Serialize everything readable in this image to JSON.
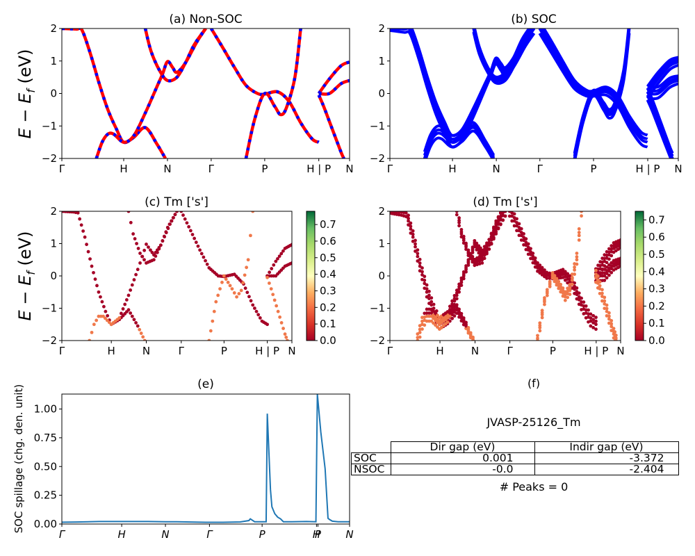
{
  "chart_data": [
    {
      "id": "a",
      "type": "line",
      "title": "(a) Non-SOC",
      "ylabel": "E − E_f (eV)",
      "xlabel": "",
      "ylim": [
        -2,
        2
      ],
      "yticks": [
        "−2",
        "−1",
        "0",
        "1",
        "2"
      ],
      "kpath": [
        {
          "label": "Γ",
          "pos": 0
        },
        {
          "label": "H",
          "pos": 0.215
        },
        {
          "label": "N",
          "pos": 0.367
        },
        {
          "label": "Γ",
          "pos": 0.519
        },
        {
          "label": "P",
          "pos": 0.705
        },
        {
          "label": "H | P",
          "pos": 0.893
        },
        {
          "label": "N",
          "pos": 1.0
        }
      ],
      "style": "red solid with blue dashes (spin up/down overlap)",
      "colors": {
        "line_a": "#ff0000",
        "line_b": "#0000ff"
      },
      "bands": [
        [
          [
            0.0,
            2.0
          ],
          [
            0.05,
            1.98
          ],
          [
            0.07,
            1.95
          ],
          [
            0.1,
            1.2
          ],
          [
            0.13,
            0.3
          ],
          [
            0.16,
            -0.5
          ],
          [
            0.19,
            -1.1
          ],
          [
            0.215,
            -1.5
          ],
          [
            0.25,
            -1.35
          ],
          [
            0.29,
            -1.05
          ],
          [
            0.33,
            -1.55
          ],
          [
            0.36,
            -2.0
          ]
        ],
        [
          [
            0.12,
            -2.0
          ],
          [
            0.14,
            -1.5
          ],
          [
            0.16,
            -1.25
          ],
          [
            0.18,
            -1.25
          ],
          [
            0.215,
            -1.5
          ],
          [
            0.25,
            -1.3
          ],
          [
            0.29,
            -0.6
          ],
          [
            0.33,
            0.2
          ],
          [
            0.35,
            0.6
          ],
          [
            0.367,
            0.98
          ],
          [
            0.385,
            0.8
          ],
          [
            0.4,
            0.65
          ],
          [
            0.43,
            0.95
          ],
          [
            0.47,
            1.6
          ],
          [
            0.5,
            2.0
          ]
        ],
        [
          [
            0.29,
            2.0
          ],
          [
            0.31,
            1.3
          ],
          [
            0.34,
            0.7
          ],
          [
            0.367,
            0.4
          ],
          [
            0.4,
            0.5
          ],
          [
            0.43,
            0.95
          ],
          [
            0.46,
            1.5
          ],
          [
            0.5,
            2.0
          ]
        ],
        [
          [
            0.519,
            2.0
          ],
          [
            0.56,
            1.4
          ],
          [
            0.6,
            0.8
          ],
          [
            0.64,
            0.25
          ],
          [
            0.68,
            0.0
          ],
          [
            0.705,
            -0.02
          ],
          [
            0.75,
            0.05
          ],
          [
            0.79,
            -0.25
          ],
          [
            0.83,
            -0.9
          ],
          [
            0.87,
            -1.4
          ],
          [
            0.893,
            -1.5
          ]
        ],
        [
          [
            0.64,
            -2.0
          ],
          [
            0.67,
            -0.8
          ],
          [
            0.705,
            0.0
          ],
          [
            0.74,
            -0.4
          ],
          [
            0.76,
            -0.65
          ],
          [
            0.78,
            -0.45
          ],
          [
            0.81,
            0.5
          ],
          [
            0.83,
            2.0
          ]
        ],
        [
          [
            0.893,
            0.0
          ],
          [
            0.93,
            0.45
          ],
          [
            0.97,
            0.85
          ],
          [
            1.0,
            0.97
          ]
        ],
        [
          [
            0.893,
            0.0
          ],
          [
            0.93,
            0.0
          ],
          [
            0.97,
            0.3
          ],
          [
            1.0,
            0.4
          ]
        ],
        [
          [
            0.893,
            -0.05
          ],
          [
            0.91,
            -0.4
          ],
          [
            0.94,
            -1.1
          ],
          [
            0.97,
            -1.8
          ],
          [
            0.98,
            -2.0
          ]
        ]
      ]
    },
    {
      "id": "b",
      "type": "line",
      "title": "(b) SOC",
      "ylim": [
        -2,
        2
      ],
      "yticks": [
        "−2",
        "−1",
        "0",
        "1",
        "2"
      ],
      "kpath": [
        {
          "label": "Γ",
          "pos": 0
        },
        {
          "label": "H",
          "pos": 0.217
        },
        {
          "label": "N",
          "pos": 0.369
        },
        {
          "label": "Γ",
          "pos": 0.52
        },
        {
          "label": "P",
          "pos": 0.706
        },
        {
          "label": "H | P",
          "pos": 0.894
        },
        {
          "label": "N",
          "pos": 1.0
        }
      ],
      "colors": {
        "line": "#0000ff"
      },
      "band_offsets": [
        -0.15,
        0.0,
        0.1,
        0.22
      ]
    },
    {
      "id": "c",
      "type": "scatter",
      "title": "(c)  Tm ['s']",
      "ylabel": "E − E_f (eV)",
      "ylim": [
        -2,
        2
      ],
      "yticks": [
        "−2",
        "−1",
        "0",
        "1",
        "2"
      ],
      "kpath_labels": [
        "Γ",
        "H",
        "N",
        "Γ",
        "P",
        "H | P",
        "N"
      ],
      "colorbar": {
        "cmap": "RdYlGn",
        "range": [
          0.0,
          0.78
        ],
        "ticks": [
          "0.0",
          "0.1",
          "0.2",
          "0.3",
          "0.4",
          "0.5",
          "0.6",
          "0.7"
        ]
      },
      "note": "mostly dark red (~0.0); orange points (~0.15-0.25) on lower branches near H and P"
    },
    {
      "id": "d",
      "type": "scatter",
      "title": "(d) Tm ['s']",
      "ylim": [
        -2,
        2
      ],
      "yticks": [
        "−2",
        "−1",
        "0",
        "1",
        "2"
      ],
      "kpath_labels": [
        "Γ",
        "H",
        "N",
        "Γ",
        "P",
        "H | P",
        "N"
      ],
      "colorbar": {
        "cmap": "RdYlGn",
        "range": [
          0.0,
          0.75
        ],
        "ticks": [
          "0.0",
          "0.1",
          "0.2",
          "0.3",
          "0.4",
          "0.5",
          "0.6",
          "0.7"
        ]
      }
    },
    {
      "id": "e",
      "type": "line",
      "title": "(e)",
      "ylabel": "SOC spillage (chg. den. unit)",
      "ylim": [
        0.0,
        1.13
      ],
      "yticks": [
        "0.00",
        "0.25",
        "0.50",
        "0.75",
        "1.00"
      ],
      "kpath": [
        {
          "label": "Γ",
          "pos": 0
        },
        {
          "label": "H",
          "pos": 0.208
        },
        {
          "label": "N",
          "pos": 0.36
        },
        {
          "label": "Γ",
          "pos": 0.513
        },
        {
          "label": "P",
          "pos": 0.696
        },
        {
          "label": "H",
          "pos": 0.885
        },
        {
          "label": "P",
          "pos": 0.89
        },
        {
          "label": "N",
          "pos": 1.0
        }
      ],
      "color": "#1f77b4",
      "x": [
        0,
        0.05,
        0.13,
        0.2,
        0.3,
        0.36,
        0.4,
        0.45,
        0.5,
        0.56,
        0.62,
        0.65,
        0.655,
        0.67,
        0.7,
        0.71,
        0.714,
        0.72,
        0.725,
        0.73,
        0.74,
        0.75,
        0.76,
        0.77,
        0.8,
        0.85,
        0.883,
        0.888,
        0.892,
        0.9,
        0.915,
        0.925,
        0.93,
        0.94,
        0.96,
        1.0
      ],
      "y": [
        0.016,
        0.017,
        0.022,
        0.022,
        0.022,
        0.02,
        0.02,
        0.017,
        0.015,
        0.015,
        0.018,
        0.03,
        0.045,
        0.02,
        0.02,
        0.02,
        0.96,
        0.6,
        0.3,
        0.15,
        0.09,
        0.06,
        0.045,
        0.02,
        0.02,
        0.022,
        0.02,
        1.13,
        1.02,
        0.8,
        0.48,
        0.05,
        0.04,
        0.025,
        0.02,
        0.02
      ]
    }
  ],
  "table_panel": {
    "title": "(f)",
    "material_id": "JVASP-25126_Tm",
    "columns": [
      "",
      "Dir gap (eV)",
      "Indir gap (eV)"
    ],
    "rows": [
      {
        "label": "SOC",
        "dir_gap": "0.001",
        "indir_gap": "-3.372"
      },
      {
        "label": "NSOC",
        "dir_gap": "-0.0",
        "indir_gap": "-2.404"
      }
    ],
    "peaks_text": "# Peaks = 0"
  }
}
